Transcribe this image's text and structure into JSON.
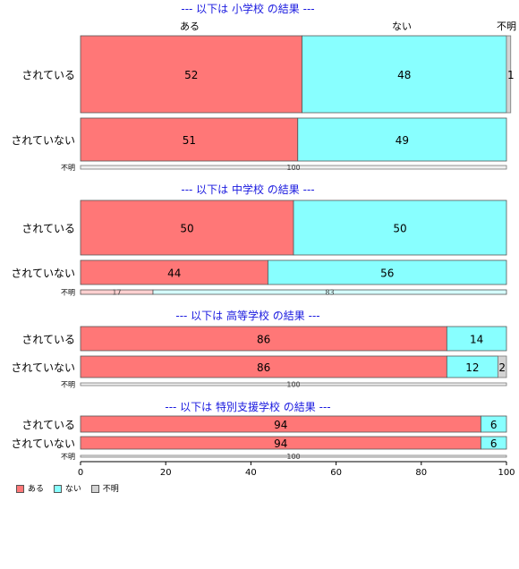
{
  "chart_data": {
    "type": "bar",
    "orientation": "horizontal",
    "stacked": true,
    "xlim": [
      0,
      100
    ],
    "x_ticks": [
      "0",
      "20",
      "40",
      "60",
      "80",
      "100"
    ],
    "top_category_labels": [
      "ある",
      "ない",
      "不明"
    ],
    "legend": {
      "placement": "bottom-left",
      "entries": [
        "ある",
        "ない",
        "不明"
      ],
      "colors": [
        "#ff7777",
        "#88ffff",
        "#d3d3d3"
      ]
    },
    "panels": [
      {
        "title": "--- 以下は 小学校 の結果 ---",
        "rows": [
          {
            "label": "されている",
            "values": [
              52,
              48,
              1
            ]
          },
          {
            "label": "されていない",
            "values": [
              51,
              49,
              0
            ]
          },
          {
            "label": "不明",
            "values": [
              0,
              0,
              100
            ],
            "value_labels": [
              "",
              "",
              "100"
            ]
          }
        ]
      },
      {
        "title": "--- 以下は 中学校 の結果 ---",
        "rows": [
          {
            "label": "されている",
            "values": [
              50,
              50,
              0
            ]
          },
          {
            "label": "されていない",
            "values": [
              44,
              56,
              0
            ]
          },
          {
            "label": "不明",
            "values": [
              17,
              83,
              0
            ],
            "value_labels": [
              "17",
              "83",
              ""
            ]
          }
        ]
      },
      {
        "title": "--- 以下は 高等学校 の結果 ---",
        "rows": [
          {
            "label": "されている",
            "values": [
              86,
              14,
              0
            ]
          },
          {
            "label": "されていない",
            "values": [
              86,
              12,
              2
            ]
          },
          {
            "label": "不明",
            "values": [
              0,
              0,
              100
            ],
            "value_labels": [
              "",
              "",
              "100"
            ]
          }
        ]
      },
      {
        "title": "--- 以下は 特別支援学校 の結果 ---",
        "rows": [
          {
            "label": "されている",
            "values": [
              94,
              6,
              0
            ]
          },
          {
            "label": "されていない",
            "values": [
              94,
              6,
              0
            ]
          },
          {
            "label": "不明",
            "values": [
              0,
              0,
              100
            ],
            "value_labels": [
              "",
              "",
              "100"
            ]
          }
        ]
      }
    ]
  }
}
